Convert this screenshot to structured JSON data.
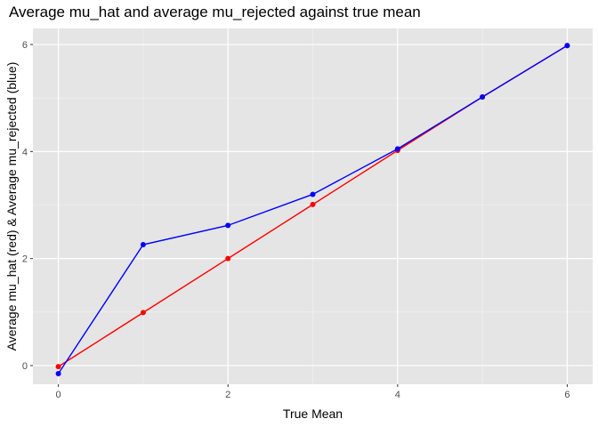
{
  "chart_data": {
    "type": "line",
    "title": "Average mu_hat and average mu_rejected against true mean",
    "xlabel": "True Mean",
    "ylabel": "Average mu_hat (red) & Average mu_rejected (blue)",
    "xlim": [
      -0.3,
      6.3
    ],
    "ylim": [
      -0.35,
      6.3
    ],
    "x_ticks": [
      0,
      2,
      4,
      6
    ],
    "y_ticks": [
      0,
      2,
      4,
      6
    ],
    "grid": true,
    "legend": "none",
    "x": [
      0,
      1,
      2,
      3,
      4,
      5,
      6
    ],
    "series": [
      {
        "color": "#ff0000",
        "values": [
          -0.02,
          0.99,
          2.0,
          3.01,
          4.02,
          5.02,
          5.98
        ]
      },
      {
        "color": "#0000ff",
        "values": [
          -0.15,
          2.26,
          2.62,
          3.2,
          4.05,
          5.02,
          5.98
        ]
      }
    ]
  },
  "style": {
    "panel_bg": "#e5e5e5",
    "grid_major": "#ffffff",
    "grid_minor": "#f2f2f2"
  }
}
